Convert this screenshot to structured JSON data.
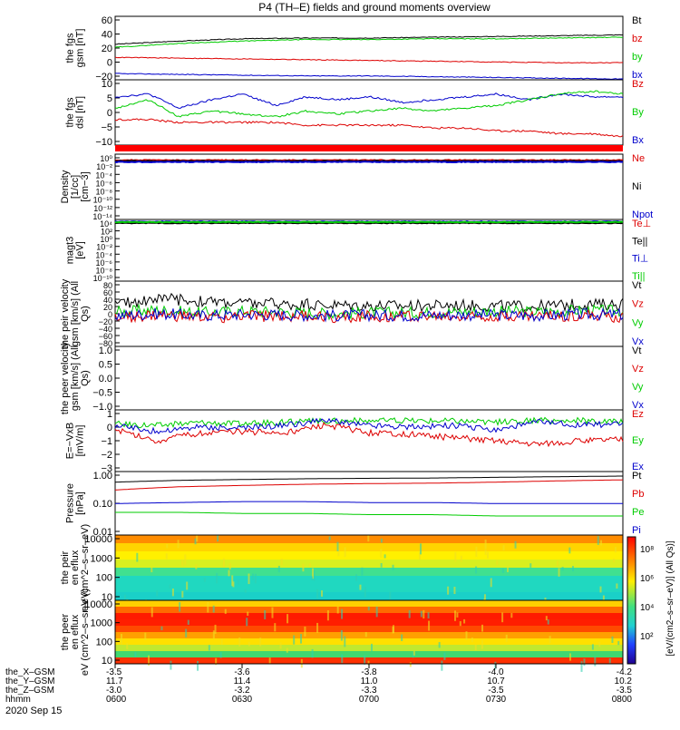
{
  "title": "P4 (TH–E) fields and ground moments overview",
  "date": "2020 Sep 15",
  "colorbar": {
    "label": "[eV/(cm2–s–sr–eV)] (All Qs)]",
    "ticks": [
      "10⁸",
      "10⁶",
      "10⁴",
      "10²"
    ]
  },
  "xaxis": {
    "row_labels": [
      "the_X–GSM",
      "the_Y–GSM",
      "the_Z–GSM",
      "hhmm"
    ],
    "columns": [
      {
        "x": "-3.5",
        "y": "11.7",
        "z": "-3.0",
        "t": "0600"
      },
      {
        "x": "-3.6",
        "y": "11.4",
        "z": "-3.2",
        "t": "0630"
      },
      {
        "x": "-3.8",
        "y": "11.0",
        "z": "-3.3",
        "t": "0700"
      },
      {
        "x": "-4.0",
        "y": "10.7",
        "z": "-3.5",
        "t": "0730"
      },
      {
        "x": "-4.2",
        "y": "10.2",
        "z": "-3.5",
        "t": "0800"
      }
    ]
  },
  "colors": {
    "black": "#000000",
    "red": "#dd0000",
    "green": "#00cc00",
    "blue": "#0000cc"
  },
  "chart_data": [
    {
      "type": "line",
      "ylabel": "the fgs gsm [nT]",
      "ylim": [
        -20,
        62
      ],
      "yticks": [
        "60",
        "40",
        "20",
        "0",
        "−20"
      ],
      "legend": [
        {
          "name": "Bt",
          "color": "#000000"
        },
        {
          "name": "bz",
          "color": "#dd0000"
        },
        {
          "name": "by",
          "color": "#00cc00"
        },
        {
          "name": "bx",
          "color": "#0000cc"
        }
      ],
      "series": [
        {
          "name": "Bt",
          "color": "#000000",
          "x": [
            0,
            15,
            30,
            45,
            60,
            75,
            90,
            105,
            120
          ],
          "values": [
            26,
            30,
            33,
            34,
            34,
            35,
            36,
            37,
            38
          ]
        },
        {
          "name": "bz",
          "color": "#dd0000",
          "x": [
            0,
            15,
            30,
            45,
            60,
            75,
            90,
            105,
            120
          ],
          "values": [
            9,
            8,
            7,
            6,
            5,
            4,
            3,
            2,
            2
          ]
        },
        {
          "name": "by",
          "color": "#00cc00",
          "x": [
            0,
            15,
            30,
            45,
            60,
            75,
            90,
            105,
            120
          ],
          "values": [
            22,
            27,
            30,
            32,
            32,
            33,
            33,
            34,
            35
          ]
        },
        {
          "name": "bx",
          "color": "#0000cc",
          "x": [
            0,
            15,
            30,
            45,
            60,
            75,
            90,
            105,
            120
          ],
          "values": [
            -12,
            -13,
            -14,
            -15,
            -15,
            -16,
            -17,
            -18,
            -19
          ]
        }
      ]
    },
    {
      "type": "line",
      "ylabel": "the fgs dsl [nT]",
      "ylim": [
        -13,
        10
      ],
      "yticks": [
        "10",
        "5",
        "0",
        "−5",
        "−10"
      ],
      "legend": [
        {
          "name": "Bz",
          "color": "#dd0000"
        },
        {
          "name": "By",
          "color": "#00cc00"
        },
        {
          "name": "Bx",
          "color": "#0000cc"
        }
      ],
      "series": [
        {
          "name": "Bx",
          "color": "#0000cc",
          "x": [
            0,
            8,
            15,
            23,
            30,
            38,
            45,
            53,
            60,
            68,
            75,
            83,
            90,
            98,
            105,
            113,
            120
          ],
          "values": [
            4,
            5,
            0,
            3,
            5,
            1,
            4,
            3,
            4,
            2,
            3,
            4,
            5,
            3,
            5,
            4,
            4
          ]
        },
        {
          "name": "By",
          "color": "#00cc00",
          "x": [
            0,
            8,
            15,
            23,
            30,
            38,
            45,
            53,
            60,
            68,
            75,
            83,
            90,
            98,
            105,
            113,
            120
          ],
          "values": [
            0,
            3,
            -3,
            -1,
            -2,
            -3,
            -1,
            -2,
            -1,
            0,
            -1,
            0,
            1,
            3,
            5,
            6,
            5
          ]
        },
        {
          "name": "Bz",
          "color": "#dd0000",
          "x": [
            0,
            8,
            15,
            23,
            30,
            38,
            45,
            53,
            60,
            68,
            75,
            83,
            90,
            98,
            105,
            113,
            120
          ],
          "values": [
            -4,
            -4,
            -5,
            -5,
            -5,
            -5,
            -6,
            -6,
            -6,
            -6,
            -7,
            -7,
            -8,
            -8,
            -9,
            -9,
            -10
          ]
        }
      ]
    },
    {
      "type": "line",
      "ylabel": "Density [1/cc] [cm−3]",
      "ylim": [
        -14,
        2
      ],
      "yticks": [
        "10⁰",
        "10⁻²",
        "10⁻⁴",
        "10⁻⁶",
        "10⁻⁸",
        "10⁻¹⁰",
        "10⁻¹²",
        "10⁻¹⁴"
      ],
      "legend": [
        {
          "name": "Ne",
          "color": "#dd0000"
        },
        {
          "name": "Ni",
          "color": "#000000"
        },
        {
          "name": "Npot",
          "color": "#0000cc"
        }
      ],
      "series": [
        {
          "name": "Ne",
          "color": "#dd0000",
          "x": [
            0,
            120
          ],
          "values": [
            0.5,
            0.5
          ]
        },
        {
          "name": "Ni",
          "color": "#000000",
          "x": [
            0,
            120
          ],
          "values": [
            0.3,
            0.3
          ]
        },
        {
          "name": "Npot",
          "color": "#0000cc",
          "x": [
            0,
            120
          ],
          "values": [
            0.1,
            0.1
          ]
        }
      ]
    },
    {
      "type": "line",
      "ylabel": "magt3 [eV]",
      "ylim": [
        -10,
        4
      ],
      "yticks": [
        "10⁴",
        "10²",
        "10⁰",
        "10⁻²",
        "10⁻⁴",
        "10⁻⁶",
        "10⁻⁸",
        "10⁻¹⁰"
      ],
      "legend": [
        {
          "name": "Te⊥",
          "color": "#dd0000"
        },
        {
          "name": "Te||",
          "color": "#000000"
        },
        {
          "name": "Ti⊥",
          "color": "#0000cc"
        },
        {
          "name": "Ti||",
          "color": "#00cc00"
        }
      ],
      "series": [
        {
          "name": "Te⊥",
          "color": "#dd0000",
          "x": [
            0,
            120
          ],
          "values": [
            3.3,
            3.3
          ]
        },
        {
          "name": "Te||",
          "color": "#000000",
          "x": [
            0,
            120
          ],
          "values": [
            3.2,
            3.2
          ]
        },
        {
          "name": "Ti⊥",
          "color": "#0000cc",
          "x": [
            0,
            120
          ],
          "values": [
            3.5,
            3.5
          ]
        },
        {
          "name": "Ti||",
          "color": "#00cc00",
          "x": [
            0,
            120
          ],
          "values": [
            3.4,
            3.4
          ]
        }
      ]
    },
    {
      "type": "line",
      "ylabel": "the peir velocity gsm [km/s] (All Qs)",
      "ylim": [
        -80,
        90
      ],
      "yticks": [
        "80",
        "60",
        "40",
        "20",
        "0",
        "−20",
        "−40",
        "−60",
        "−80"
      ],
      "legend": [
        {
          "name": "Vt",
          "color": "#000000"
        },
        {
          "name": "Vz",
          "color": "#dd0000"
        },
        {
          "name": "Vy",
          "color": "#00cc00"
        },
        {
          "name": "Vx",
          "color": "#0000cc"
        }
      ],
      "series": [
        {
          "name": "Vt",
          "color": "#000000",
          "x": [
            0,
            10,
            20,
            30,
            40,
            50,
            60,
            70,
            80,
            90,
            100,
            110,
            120
          ],
          "values": [
            30,
            45,
            38,
            33,
            30,
            28,
            27,
            26,
            28,
            26,
            25,
            30,
            30
          ]
        },
        {
          "name": "Vy",
          "color": "#00cc00",
          "x": [
            0,
            10,
            20,
            30,
            40,
            50,
            60,
            70,
            80,
            90,
            100,
            110,
            120
          ],
          "values": [
            10,
            15,
            8,
            12,
            10,
            6,
            8,
            8,
            10,
            12,
            10,
            14,
            12
          ]
        },
        {
          "name": "Vz",
          "color": "#dd0000",
          "x": [
            0,
            10,
            20,
            30,
            40,
            50,
            60,
            70,
            80,
            90,
            100,
            110,
            120
          ],
          "values": [
            -5,
            0,
            -5,
            -2,
            0,
            -3,
            -2,
            0,
            -4,
            0,
            -2,
            0,
            -3
          ]
        },
        {
          "name": "Vx",
          "color": "#0000cc",
          "x": [
            0,
            10,
            20,
            30,
            40,
            50,
            60,
            70,
            80,
            90,
            100,
            110,
            120
          ],
          "values": [
            0,
            5,
            0,
            3,
            2,
            0,
            1,
            0,
            2,
            1,
            0,
            3,
            2
          ]
        }
      ]
    },
    {
      "type": "line",
      "ylabel": "the peer velocity gsm [km/s] (All Qs)",
      "ylim": [
        -1,
        1
      ],
      "yticks": [
        "1.0",
        "0.5",
        "0.0",
        "−0.5",
        "−1.0"
      ],
      "legend": [
        {
          "name": "Vt",
          "color": "#000000"
        },
        {
          "name": "Vz",
          "color": "#dd0000"
        },
        {
          "name": "Vy",
          "color": "#00cc00"
        },
        {
          "name": "Vx",
          "color": "#0000cc"
        }
      ],
      "series": []
    },
    {
      "type": "line",
      "ylabel": "E=−VxB [mV/m]",
      "ylim": [
        -3,
        1
      ],
      "yticks": [
        "1",
        "0",
        "−1",
        "−2",
        "−3"
      ],
      "legend": [
        {
          "name": "Ez",
          "color": "#dd0000"
        },
        {
          "name": "Ey",
          "color": "#00cc00"
        },
        {
          "name": "Ex",
          "color": "#0000cc"
        }
      ],
      "series": [
        {
          "name": "Ey",
          "color": "#00cc00",
          "x": [
            0,
            10,
            20,
            30,
            40,
            50,
            60,
            70,
            80,
            90,
            100,
            110,
            120
          ],
          "values": [
            0.1,
            0,
            0.2,
            0.1,
            0.2,
            0.3,
            0.3,
            0.3,
            0.3,
            0.2,
            0.3,
            0.3,
            0.2
          ]
        },
        {
          "name": "Ex",
          "color": "#0000cc",
          "x": [
            0,
            10,
            20,
            30,
            40,
            50,
            60,
            70,
            80,
            90,
            100,
            110,
            120
          ],
          "values": [
            0,
            -0.4,
            -0.1,
            -0.2,
            0,
            0.3,
            0,
            -0.1,
            0,
            -0.3,
            0.2,
            0,
            0.1
          ]
        },
        {
          "name": "Ez",
          "color": "#dd0000",
          "x": [
            0,
            10,
            20,
            30,
            40,
            50,
            60,
            70,
            80,
            90,
            100,
            110,
            120
          ],
          "values": [
            -0.3,
            -1,
            -0.5,
            -0.4,
            -0.5,
            0,
            -0.5,
            -0.6,
            -0.8,
            -1,
            -1.2,
            -1,
            -0.9
          ]
        }
      ]
    },
    {
      "type": "line",
      "ylabel": "Pressure [nPa]",
      "ylog": true,
      "ylim": [
        0.01,
        1.5
      ],
      "yticks": [
        "1.00",
        "0.10",
        "0.01"
      ],
      "legend": [
        {
          "name": "Pt",
          "color": "#000000"
        },
        {
          "name": "Pb",
          "color": "#dd0000"
        },
        {
          "name": "Pe",
          "color": "#00cc00"
        },
        {
          "name": "Pi",
          "color": "#0000cc"
        }
      ],
      "series": [
        {
          "name": "Pt",
          "color": "#000000",
          "x": [
            0,
            15,
            30,
            45,
            60,
            75,
            90,
            105,
            120
          ],
          "values": [
            0.65,
            0.75,
            0.8,
            0.85,
            0.88,
            0.9,
            0.95,
            1.0,
            1.05
          ]
        },
        {
          "name": "Pb",
          "color": "#dd0000",
          "x": [
            0,
            15,
            30,
            45,
            60,
            75,
            90,
            105,
            120
          ],
          "values": [
            0.35,
            0.45,
            0.5,
            0.55,
            0.58,
            0.6,
            0.65,
            0.72,
            0.78
          ]
        },
        {
          "name": "Pi",
          "color": "#0000cc",
          "x": [
            0,
            15,
            30,
            45,
            60,
            75,
            90,
            105,
            120
          ],
          "values": [
            0.12,
            0.13,
            0.14,
            0.14,
            0.13,
            0.13,
            0.12,
            0.12,
            0.12
          ]
        },
        {
          "name": "Pe",
          "color": "#00cc00",
          "x": [
            0,
            15,
            30,
            45,
            60,
            75,
            90,
            105,
            120
          ],
          "values": [
            0.06,
            0.06,
            0.055,
            0.055,
            0.05,
            0.05,
            0.045,
            0.045,
            0.045
          ]
        }
      ]
    },
    {
      "type": "heatmap",
      "ylabel": "the peir en eflux eV (cm^2–s–sr–eV)",
      "yticks": [
        "10000",
        "1000",
        "100",
        "10"
      ],
      "ylim": [
        5,
        25000
      ],
      "rows_color": [
        "#ff8c00",
        "#ffd400",
        "#fff000",
        "#d8ef20",
        "#40e090",
        "#20d8c0",
        "#20d8c0",
        "#1ad0c8"
      ]
    },
    {
      "type": "heatmap",
      "ylabel": "the peer en eflux eV (cm^2–s–sr–eV)",
      "yticks": [
        "10000",
        "1000",
        "100",
        "10"
      ],
      "ylim": [
        5,
        25000
      ],
      "rows_color": [
        "#ffd000",
        "#ff6a00",
        "#ff1a00",
        "#ff1e00",
        "#ff4a00",
        "#ffa000",
        "#ffe000",
        "#c0e830",
        "#40d870",
        "#ff3000"
      ]
    }
  ]
}
